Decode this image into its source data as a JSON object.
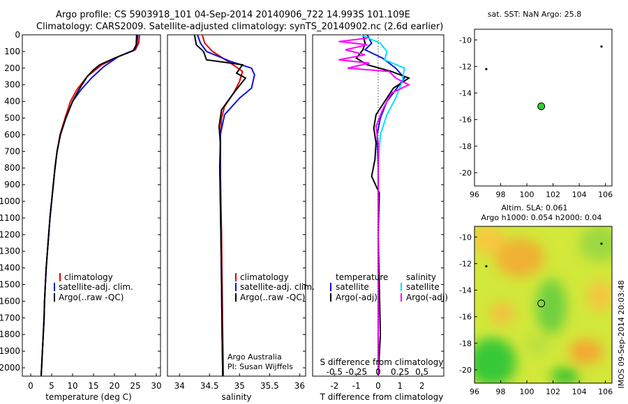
{
  "header": {
    "line1": "Argo profile: CS 5903918_101 04-Sep-2014 20140906_722 14.993S 101.109E",
    "line2": "Climatology: CARS2009. Satellite-adjusted climatology: synTS_20140902.nc (2.6d earlier)"
  },
  "colors": {
    "climatology": "#e00000",
    "satellite": "#1010e0",
    "argo": "#000000",
    "sal_satellite": "#00e0ff",
    "sal_argo": "#ff00ff"
  },
  "chart_data": [
    {
      "type": "line",
      "xlabel": "temperature (deg C)",
      "xlim": [
        -2,
        31
      ],
      "xticks": [
        "0",
        "5",
        "10",
        "15",
        "20",
        "25",
        "30"
      ],
      "ylim": [
        0,
        2050
      ],
      "yticks": [
        "0",
        "100",
        "200",
        "300",
        "400",
        "500",
        "600",
        "700",
        "800",
        "900",
        "1000",
        "1100",
        "1200",
        "1300",
        "1400",
        "1500",
        "1600",
        "1700",
        "1800",
        "1900",
        "2000"
      ],
      "legend": [
        "climatology",
        "satellite-adj. clim.",
        "Argo(..raw -QC)"
      ],
      "series": [
        {
          "name": "climatology",
          "color": "#e00000",
          "points": [
            [
              26,
              0
            ],
            [
              25.8,
              50
            ],
            [
              25,
              90
            ],
            [
              21,
              130
            ],
            [
              17,
              180
            ],
            [
              13.5,
              250
            ],
            [
              11,
              330
            ],
            [
              9.5,
              400
            ],
            [
              8.2,
              500
            ],
            [
              7,
              600
            ],
            [
              6.3,
              700
            ],
            [
              5.8,
              800
            ],
            [
              5.4,
              900
            ],
            [
              5.0,
              1000
            ],
            [
              4.6,
              1100
            ],
            [
              4.3,
              1200
            ],
            [
              4.0,
              1300
            ],
            [
              3.7,
              1400
            ],
            [
              3.5,
              1500
            ],
            [
              3.3,
              1600
            ],
            [
              3.2,
              1700
            ],
            [
              3.0,
              1800
            ],
            [
              2.8,
              1900
            ],
            [
              2.6,
              2000
            ],
            [
              2.5,
              2050
            ]
          ]
        },
        {
          "name": "satellite-adj. clim.",
          "color": "#1010e0",
          "points": [
            [
              25.6,
              0
            ],
            [
              25.4,
              50
            ],
            [
              24.8,
              90
            ],
            [
              21,
              130
            ],
            [
              17.5,
              190
            ],
            [
              14.5,
              260
            ],
            [
              12,
              330
            ],
            [
              10,
              400
            ],
            [
              8.4,
              500
            ],
            [
              7.1,
              600
            ],
            [
              6.3,
              700
            ],
            [
              5.8,
              800
            ],
            [
              5.4,
              900
            ],
            [
              5.0,
              1000
            ],
            [
              4.6,
              1100
            ],
            [
              4.3,
              1200
            ],
            [
              4.0,
              1300
            ],
            [
              3.7,
              1400
            ],
            [
              3.5,
              1500
            ],
            [
              3.3,
              1600
            ],
            [
              3.2,
              1700
            ],
            [
              3.0,
              1800
            ],
            [
              2.8,
              1900
            ],
            [
              2.6,
              2000
            ],
            [
              2.5,
              2050
            ]
          ]
        },
        {
          "name": "Argo(..raw -QC)",
          "color": "#000000",
          "points": [
            [
              25.3,
              0
            ],
            [
              25.2,
              60
            ],
            [
              24.5,
              95
            ],
            [
              20,
              140
            ],
            [
              16.5,
              180
            ],
            [
              15,
              210
            ],
            [
              13.5,
              250
            ],
            [
              11.5,
              330
            ],
            [
              10,
              400
            ],
            [
              8.4,
              500
            ],
            [
              7.1,
              600
            ],
            [
              6.3,
              700
            ],
            [
              5.8,
              800
            ],
            [
              5.4,
              900
            ],
            [
              5.0,
              1000
            ],
            [
              4.6,
              1100
            ],
            [
              4.3,
              1200
            ],
            [
              4.0,
              1300
            ],
            [
              3.7,
              1400
            ],
            [
              3.5,
              1500
            ],
            [
              3.3,
              1600
            ],
            [
              3.2,
              1700
            ],
            [
              3.0,
              1800
            ],
            [
              2.8,
              1900
            ],
            [
              2.6,
              2000
            ],
            [
              2.5,
              2050
            ]
          ]
        }
      ]
    },
    {
      "type": "line",
      "xlabel": "salinity",
      "xlim": [
        33.8,
        36.1
      ],
      "xticks": [
        "34",
        "34.5",
        "35",
        "35.5",
        "36"
      ],
      "ylim": [
        0,
        2050
      ],
      "legend": [
        "climatology",
        "satellite-adj. clim.",
        "Argo(..raw -QC)"
      ],
      "annotation": [
        "Argo Australia",
        "PI: Susan Wijffels"
      ],
      "series": [
        {
          "name": "climatology",
          "color": "#e00000",
          "points": [
            [
              34.38,
              0
            ],
            [
              34.42,
              50
            ],
            [
              34.55,
              100
            ],
            [
              34.85,
              170
            ],
            [
              35.05,
              220
            ],
            [
              35.0,
              280
            ],
            [
              34.9,
              350
            ],
            [
              34.75,
              430
            ],
            [
              34.7,
              500
            ],
            [
              34.68,
              600
            ],
            [
              34.68,
              800
            ],
            [
              34.69,
              1000
            ],
            [
              34.7,
              1200
            ],
            [
              34.71,
              1500
            ],
            [
              34.72,
              1800
            ],
            [
              34.73,
              2050
            ]
          ]
        },
        {
          "name": "satellite-adj. clim.",
          "color": "#1010e0",
          "points": [
            [
              34.3,
              0
            ],
            [
              34.35,
              50
            ],
            [
              34.45,
              100
            ],
            [
              34.85,
              160
            ],
            [
              35.2,
              200
            ],
            [
              35.25,
              240
            ],
            [
              35.2,
              320
            ],
            [
              35.0,
              380
            ],
            [
              34.75,
              480
            ],
            [
              34.68,
              600
            ],
            [
              34.68,
              800
            ],
            [
              34.68,
              1000
            ],
            [
              34.69,
              1200
            ],
            [
              34.7,
              1500
            ],
            [
              34.71,
              1800
            ],
            [
              34.72,
              2050
            ]
          ]
        },
        {
          "name": "Argo(..raw -QC)",
          "color": "#000000",
          "points": [
            [
              34.25,
              0
            ],
            [
              34.27,
              40
            ],
            [
              34.28,
              60
            ],
            [
              34.4,
              100
            ],
            [
              34.45,
              150
            ],
            [
              35.05,
              180
            ],
            [
              34.95,
              230
            ],
            [
              35.1,
              260
            ],
            [
              34.9,
              350
            ],
            [
              34.7,
              450
            ],
            [
              34.66,
              550
            ],
            [
              34.68,
              650
            ],
            [
              34.67,
              800
            ],
            [
              34.68,
              1000
            ],
            [
              34.69,
              1200
            ],
            [
              34.7,
              1500
            ],
            [
              34.71,
              1800
            ],
            [
              34.72,
              2050
            ]
          ]
        }
      ]
    },
    {
      "type": "line",
      "xlabel": "T difference from climatology",
      "xlabel_top": "S difference from climatology",
      "xlim": [
        -3,
        3
      ],
      "xticks": [
        "-2",
        "-1",
        "0",
        "1",
        "2"
      ],
      "sticks": [
        "-0.5",
        "-0.25",
        "0",
        "0.25",
        "0.5"
      ],
      "ylim": [
        0,
        2050
      ],
      "legend_temperature": {
        "title": "temperature",
        "items": [
          "satellite",
          "Argo(-adj)"
        ]
      },
      "legend_salinity": {
        "title": "salinity",
        "items": [
          "satellite",
          "Argo(-adj)"
        ]
      },
      "series": [
        {
          "name": "T satellite",
          "color": "#1010e0",
          "points": [
            [
              -0.5,
              0
            ],
            [
              -0.3,
              50
            ],
            [
              -0.6,
              90
            ],
            [
              0.2,
              140
            ],
            [
              0.8,
              200
            ],
            [
              1.2,
              260
            ],
            [
              0.8,
              330
            ],
            [
              0.4,
              400
            ],
            [
              0.1,
              500
            ],
            [
              -0.05,
              600
            ],
            [
              0,
              800
            ],
            [
              0,
              1200
            ],
            [
              0,
              2050
            ]
          ]
        },
        {
          "name": "T Argo(-adj)",
          "color": "#000000",
          "points": [
            [
              -0.7,
              0
            ],
            [
              -0.6,
              50
            ],
            [
              -0.7,
              90
            ],
            [
              -1.0,
              140
            ],
            [
              -0.5,
              180
            ],
            [
              0.6,
              220
            ],
            [
              1.4,
              260
            ],
            [
              0.7,
              320
            ],
            [
              0.3,
              400
            ],
            [
              -0.1,
              480
            ],
            [
              -0.2,
              560
            ],
            [
              -0.1,
              650
            ],
            [
              -0.15,
              750
            ],
            [
              -0.3,
              850
            ],
            [
              0.05,
              950
            ],
            [
              0,
              1200
            ],
            [
              0.1,
              1800
            ],
            [
              0,
              2050
            ]
          ]
        },
        {
          "name": "S satellite",
          "color": "#00e0ff",
          "points": [
            [
              -0.8,
              0
            ],
            [
              0.1,
              50
            ],
            [
              0.4,
              100
            ],
            [
              0.3,
              150
            ],
            [
              1.2,
              200
            ],
            [
              1.1,
              280
            ],
            [
              0.8,
              380
            ],
            [
              0.4,
              480
            ],
            [
              0.1,
              600
            ],
            [
              0,
              800
            ],
            [
              0,
              2050
            ]
          ]
        },
        {
          "name": "S Argo(-adj)",
          "color": "#ff00ff",
          "points": [
            [
              -0.5,
              20
            ],
            [
              -1.8,
              40
            ],
            [
              -0.5,
              60
            ],
            [
              -1.5,
              90
            ],
            [
              -0.6,
              120
            ],
            [
              -1.8,
              150
            ],
            [
              -0.4,
              170
            ],
            [
              -1.4,
              200
            ],
            [
              0.5,
              220
            ],
            [
              0.8,
              260
            ],
            [
              1.4,
              300
            ],
            [
              0.6,
              350
            ],
            [
              0.2,
              450
            ],
            [
              -0.1,
              550
            ],
            [
              0,
              650
            ],
            [
              0,
              2050
            ]
          ]
        }
      ]
    },
    {
      "type": "scatter",
      "title": "sat. SST: NaN Argo: 25.8",
      "xlim": [
        96,
        106.5
      ],
      "ylim": [
        -21,
        -9.2
      ],
      "xticks": [
        "96",
        "98",
        "100",
        "102",
        "104",
        "106"
      ],
      "yticks": [
        "-10",
        "-12",
        "-14",
        "-16",
        "-18",
        "-20"
      ],
      "points": [
        {
          "x": 101.1,
          "y": -15.0,
          "kind": "argo"
        },
        {
          "x": 96.9,
          "y": -12.2,
          "kind": "other"
        },
        {
          "x": 105.7,
          "y": -10.5,
          "kind": "other"
        }
      ]
    },
    {
      "type": "heatmap",
      "title1": "Altim. SLA: 0.061",
      "title2": "Argo h1000: 0.054 h2000: 0.04",
      "xlim": [
        96,
        106.5
      ],
      "ylim": [
        -21,
        -9.2
      ],
      "xticks": [
        "96",
        "98",
        "100",
        "102",
        "104",
        "106"
      ],
      "yticks": [
        "-10",
        "-12",
        "-14",
        "-16",
        "-18",
        "-20"
      ],
      "points": [
        {
          "x": 101.1,
          "y": -15.0,
          "kind": "argo"
        },
        {
          "x": 96.9,
          "y": -12.2,
          "kind": "other"
        },
        {
          "x": 105.7,
          "y": -10.5,
          "kind": "other"
        }
      ]
    }
  ],
  "footer": {
    "side_label": "IMOS 09-Sep-2014 20:03:48"
  }
}
